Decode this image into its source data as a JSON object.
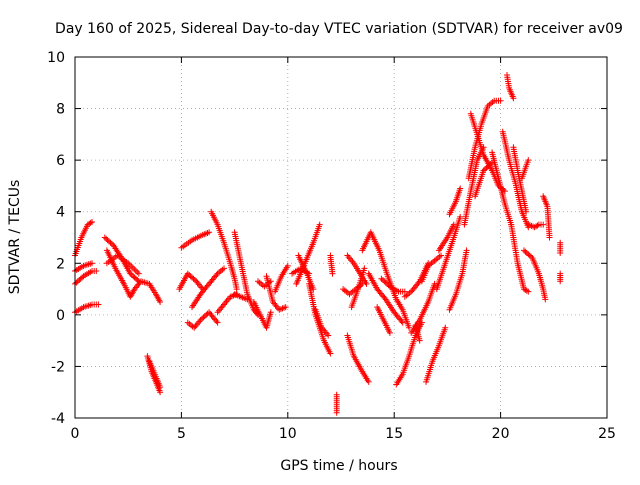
{
  "chart_data": {
    "type": "scatter",
    "title": "Day 160 of 2025, Sidereal Day-to-day VTEC variation (SDTVAR) for receiver av09",
    "xlabel": "GPS time / hours",
    "ylabel": "SDTVAR / TECUs",
    "xlim": [
      0,
      25
    ],
    "ylim": [
      -4,
      10
    ],
    "xticks": [
      0,
      5,
      10,
      15,
      20,
      25
    ],
    "yticks": [
      -4,
      -2,
      0,
      2,
      4,
      6,
      8,
      10
    ],
    "xtick_labels": [
      "0",
      "5",
      "10",
      "15",
      "20",
      "25"
    ],
    "ytick_labels": [
      "-4",
      "-2",
      "0",
      "2",
      "4",
      "6",
      "8",
      "10"
    ],
    "grid": true,
    "marker": "+",
    "series": [
      {
        "name": "SDTVAR",
        "color": "#ff0000",
        "tracks": [
          [
            [
              0.0,
              2.3
            ],
            [
              0.3,
              3.0
            ],
            [
              0.6,
              3.5
            ],
            [
              0.8,
              3.6
            ]
          ],
          [
            [
              0.0,
              1.7
            ],
            [
              0.4,
              1.9
            ],
            [
              0.8,
              2.0
            ]
          ],
          [
            [
              0.0,
              1.2
            ],
            [
              0.4,
              1.5
            ],
            [
              0.8,
              1.7
            ],
            [
              1.0,
              1.7
            ]
          ],
          [
            [
              0.0,
              0.1
            ],
            [
              0.4,
              0.3
            ],
            [
              0.8,
              0.4
            ],
            [
              1.1,
              0.4
            ]
          ],
          [
            [
              1.4,
              3.0
            ],
            [
              1.8,
              2.7
            ],
            [
              2.2,
              2.2
            ],
            [
              2.6,
              1.6
            ],
            [
              3.0,
              1.3
            ]
          ],
          [
            [
              1.5,
              2.5
            ],
            [
              1.9,
              1.8
            ],
            [
              2.3,
              1.2
            ],
            [
              2.6,
              0.7
            ],
            [
              2.8,
              1.0
            ],
            [
              3.1,
              1.3
            ],
            [
              3.5,
              1.2
            ],
            [
              3.8,
              0.8
            ],
            [
              4.0,
              0.5
            ]
          ],
          [
            [
              1.5,
              2.0
            ],
            [
              2.0,
              2.3
            ],
            [
              2.5,
              2.0
            ],
            [
              3.0,
              1.6
            ]
          ],
          [
            [
              3.4,
              -1.6
            ],
            [
              3.6,
              -2.2
            ],
            [
              3.8,
              -2.6
            ],
            [
              4.0,
              -3.0
            ]
          ],
          [
            [
              3.5,
              -1.8
            ],
            [
              3.8,
              -2.4
            ],
            [
              4.0,
              -2.8
            ]
          ],
          [
            [
              4.9,
              1.0
            ],
            [
              5.3,
              1.6
            ],
            [
              5.7,
              1.3
            ],
            [
              6.0,
              1.0
            ]
          ],
          [
            [
              5.0,
              2.6
            ],
            [
              5.5,
              2.9
            ],
            [
              6.0,
              3.1
            ],
            [
              6.3,
              3.2
            ]
          ],
          [
            [
              5.3,
              -0.3
            ],
            [
              5.6,
              -0.5
            ],
            [
              5.9,
              -0.2
            ],
            [
              6.3,
              0.1
            ],
            [
              6.7,
              -0.3
            ]
          ],
          [
            [
              5.5,
              0.3
            ],
            [
              5.9,
              0.8
            ],
            [
              6.3,
              1.2
            ],
            [
              6.7,
              1.6
            ],
            [
              7.0,
              1.8
            ]
          ],
          [
            [
              6.4,
              4.0
            ],
            [
              6.7,
              3.5
            ],
            [
              7.0,
              2.8
            ],
            [
              7.3,
              2.0
            ],
            [
              7.5,
              1.4
            ],
            [
              7.6,
              1.0
            ]
          ],
          [
            [
              6.7,
              0.1
            ],
            [
              7.0,
              0.4
            ],
            [
              7.3,
              0.7
            ],
            [
              7.6,
              0.8
            ]
          ],
          [
            [
              7.5,
              0.8
            ],
            [
              7.8,
              0.7
            ],
            [
              8.1,
              0.6
            ]
          ],
          [
            [
              7.5,
              3.2
            ],
            [
              7.8,
              2.0
            ],
            [
              8.1,
              0.8
            ],
            [
              8.4,
              0.2
            ],
            [
              8.6,
              0.0
            ]
          ],
          [
            [
              8.4,
              0.5
            ],
            [
              8.7,
              0.0
            ],
            [
              9.0,
              -0.5
            ],
            [
              9.2,
              0.1
            ]
          ],
          [
            [
              8.6,
              1.3
            ],
            [
              8.9,
              1.1
            ],
            [
              9.2,
              1.3
            ]
          ],
          [
            [
              9.0,
              1.5
            ],
            [
              9.3,
              0.5
            ],
            [
              9.6,
              0.2
            ],
            [
              9.9,
              0.3
            ]
          ],
          [
            [
              9.4,
              0.9
            ],
            [
              9.7,
              1.5
            ],
            [
              10.0,
              1.9
            ]
          ],
          [
            [
              10.2,
              1.6
            ],
            [
              10.6,
              1.8
            ],
            [
              11.0,
              1.6
            ]
          ],
          [
            [
              10.4,
              1.2
            ],
            [
              10.8,
              2.0
            ],
            [
              11.2,
              2.8
            ],
            [
              11.5,
              3.5
            ]
          ],
          [
            [
              10.5,
              2.3
            ],
            [
              10.9,
              1.6
            ],
            [
              11.2,
              1.0
            ]
          ],
          [
            [
              11.0,
              1.2
            ],
            [
              11.3,
              0.0
            ],
            [
              11.7,
              -1.0
            ],
            [
              12.0,
              -1.5
            ]
          ],
          [
            [
              11.3,
              0.2
            ],
            [
              11.6,
              -0.5
            ],
            [
              11.9,
              -0.8
            ]
          ],
          [
            [
              12.0,
              2.3
            ],
            [
              12.1,
              1.6
            ]
          ],
          [
            [
              12.3,
              -3.1
            ],
            [
              12.3,
              -3.8
            ]
          ],
          [
            [
              12.6,
              1.0
            ],
            [
              12.9,
              0.8
            ],
            [
              13.2,
              1.0
            ],
            [
              13.5,
              1.2
            ]
          ],
          [
            [
              12.8,
              -0.8
            ],
            [
              13.1,
              -1.6
            ],
            [
              13.5,
              -2.2
            ],
            [
              13.8,
              -2.6
            ]
          ],
          [
            [
              12.8,
              2.3
            ],
            [
              13.1,
              2.0
            ],
            [
              13.4,
              1.6
            ],
            [
              13.7,
              1.2
            ]
          ],
          [
            [
              13.5,
              2.5
            ],
            [
              13.9,
              3.2
            ],
            [
              14.3,
              2.5
            ],
            [
              14.7,
              1.5
            ],
            [
              15.1,
              0.6
            ],
            [
              15.4,
              0.2
            ],
            [
              15.7,
              -0.5
            ]
          ],
          [
            [
              13.0,
              0.3
            ],
            [
              13.3,
              1.0
            ],
            [
              13.6,
              1.8
            ]
          ],
          [
            [
              13.8,
              1.6
            ],
            [
              14.2,
              1.0
            ],
            [
              14.6,
              0.6
            ],
            [
              15.0,
              0.1
            ],
            [
              15.4,
              -0.3
            ]
          ],
          [
            [
              14.4,
              1.4
            ],
            [
              14.8,
              1.1
            ],
            [
              15.2,
              0.9
            ],
            [
              15.5,
              0.9
            ]
          ],
          [
            [
              14.2,
              0.3
            ],
            [
              14.5,
              -0.2
            ],
            [
              14.8,
              -0.7
            ]
          ],
          [
            [
              15.5,
              0.7
            ],
            [
              15.8,
              0.9
            ],
            [
              16.2,
              1.3
            ],
            [
              16.6,
              2.0
            ]
          ],
          [
            [
              15.1,
              -2.7
            ],
            [
              15.4,
              -2.3
            ],
            [
              15.7,
              -1.6
            ],
            [
              16.0,
              -0.8
            ],
            [
              16.3,
              -0.3
            ]
          ],
          [
            [
              15.8,
              -0.7
            ],
            [
              16.2,
              -0.2
            ],
            [
              16.6,
              0.5
            ],
            [
              16.9,
              1.2
            ]
          ],
          [
            [
              16.0,
              -0.4
            ],
            [
              16.2,
              -1.0
            ]
          ],
          [
            [
              16.5,
              -2.6
            ],
            [
              16.8,
              -1.8
            ],
            [
              17.1,
              -1.2
            ],
            [
              17.4,
              -0.5
            ]
          ],
          [
            [
              16.3,
              1.3
            ],
            [
              16.6,
              1.9
            ],
            [
              16.9,
              2.1
            ],
            [
              17.2,
              2.3
            ]
          ],
          [
            [
              17.0,
              1.0
            ],
            [
              17.4,
              2.0
            ],
            [
              17.8,
              3.0
            ],
            [
              18.1,
              3.8
            ]
          ],
          [
            [
              17.1,
              2.5
            ],
            [
              17.5,
              3.0
            ],
            [
              17.8,
              3.5
            ]
          ],
          [
            [
              17.6,
              0.2
            ],
            [
              17.9,
              0.8
            ],
            [
              18.2,
              1.6
            ],
            [
              18.4,
              2.5
            ]
          ],
          [
            [
              17.6,
              3.9
            ],
            [
              17.9,
              4.4
            ],
            [
              18.1,
              4.9
            ]
          ],
          [
            [
              18.3,
              3.5
            ],
            [
              18.6,
              4.8
            ],
            [
              18.9,
              6.0
            ],
            [
              19.2,
              6.5
            ]
          ],
          [
            [
              18.5,
              5.3
            ],
            [
              18.8,
              6.5
            ],
            [
              19.1,
              7.4
            ],
            [
              19.4,
              8.1
            ],
            [
              19.7,
              8.3
            ],
            [
              20.0,
              8.3
            ]
          ],
          [
            [
              18.6,
              7.8
            ],
            [
              18.9,
              7.0
            ],
            [
              19.2,
              6.2
            ],
            [
              19.6,
              5.6
            ],
            [
              19.9,
              5.0
            ],
            [
              20.2,
              4.8
            ]
          ],
          [
            [
              18.8,
              4.6
            ],
            [
              19.2,
              5.6
            ],
            [
              19.6,
              5.9
            ]
          ],
          [
            [
              19.6,
              6.3
            ],
            [
              19.9,
              5.3
            ],
            [
              20.2,
              4.3
            ],
            [
              20.5,
              3.5
            ]
          ],
          [
            [
              20.3,
              9.3
            ],
            [
              20.4,
              8.8
            ],
            [
              20.6,
              8.4
            ]
          ],
          [
            [
              20.1,
              7.1
            ],
            [
              20.4,
              6.0
            ],
            [
              20.7,
              5.1
            ],
            [
              21.0,
              4.0
            ],
            [
              21.3,
              3.4
            ]
          ],
          [
            [
              20.6,
              6.5
            ],
            [
              20.8,
              5.6
            ],
            [
              21.0,
              4.8
            ],
            [
              21.2,
              4.0
            ]
          ],
          [
            [
              20.5,
              3.5
            ],
            [
              20.8,
              2.0
            ],
            [
              21.1,
              1.0
            ],
            [
              21.3,
              0.9
            ]
          ],
          [
            [
              21.0,
              5.3
            ],
            [
              21.3,
              6.0
            ]
          ],
          [
            [
              21.3,
              3.5
            ],
            [
              21.6,
              3.4
            ],
            [
              21.8,
              3.5
            ],
            [
              22.0,
              3.5
            ]
          ],
          [
            [
              21.1,
              2.5
            ],
            [
              21.5,
              2.2
            ],
            [
              21.8,
              1.6
            ],
            [
              22.0,
              1.0
            ],
            [
              22.1,
              0.6
            ]
          ],
          [
            [
              22.0,
              4.6
            ],
            [
              22.2,
              4.2
            ],
            [
              22.3,
              3.0
            ]
          ],
          [
            [
              22.8,
              2.8
            ],
            [
              22.8,
              2.4
            ]
          ],
          [
            [
              22.8,
              1.6
            ],
            [
              22.8,
              1.3
            ]
          ]
        ]
      }
    ]
  }
}
